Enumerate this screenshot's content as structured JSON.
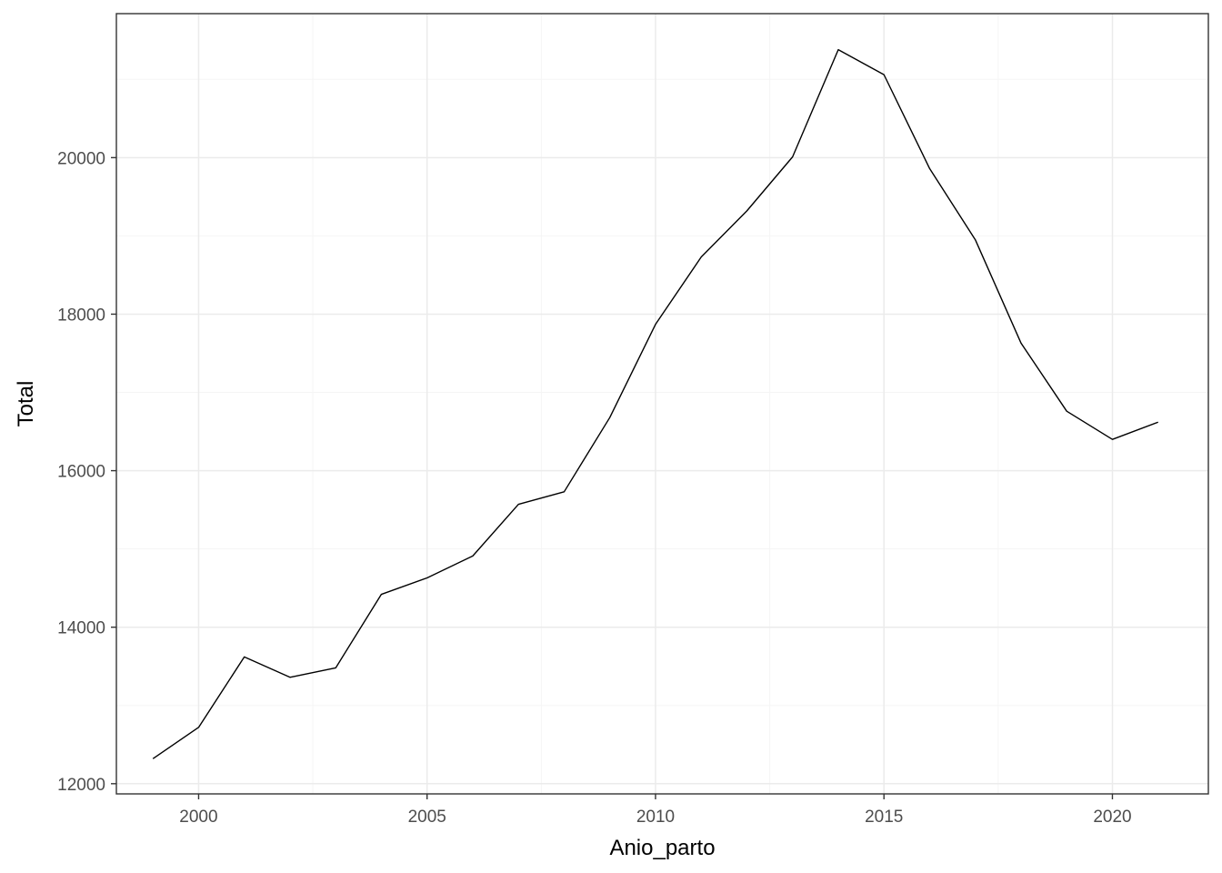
{
  "chart_data": {
    "type": "line",
    "title": "",
    "xlabel": "Anio_parto",
    "ylabel": "Total",
    "x": [
      1999,
      2000,
      2001,
      2002,
      2003,
      2004,
      2005,
      2006,
      2007,
      2008,
      2009,
      2010,
      2011,
      2012,
      2013,
      2014,
      2015,
      2016,
      2017,
      2018,
      2019,
      2020,
      2021
    ],
    "series": [
      {
        "values": [
          12320,
          12720,
          13620,
          13360,
          13480,
          14420,
          14630,
          14910,
          15570,
          15730,
          16680,
          17870,
          18730,
          19320,
          20010,
          21380,
          21060,
          19860,
          18950,
          17630,
          16760,
          16400,
          16620
        ],
        "color": "#000000"
      }
    ],
    "xlim": [
      1998.2,
      2022.1
    ],
    "ylim": [
      11870,
      21840
    ],
    "x_ticks": [
      2000,
      2005,
      2010,
      2015,
      2020
    ],
    "y_ticks": [
      12000,
      14000,
      16000,
      18000,
      20000
    ],
    "x_tick_labels": [
      "2000",
      "2005",
      "2010",
      "2015",
      "2020"
    ],
    "y_tick_labels": [
      "12000",
      "14000",
      "16000",
      "18000",
      "20000"
    ],
    "grid": true,
    "legend": "none",
    "colors": {
      "background": "#ffffff",
      "panel_border": "#333333",
      "grid_major": "#ebebeb",
      "grid_minor": "#f5f5f5",
      "line": "#000000"
    }
  }
}
